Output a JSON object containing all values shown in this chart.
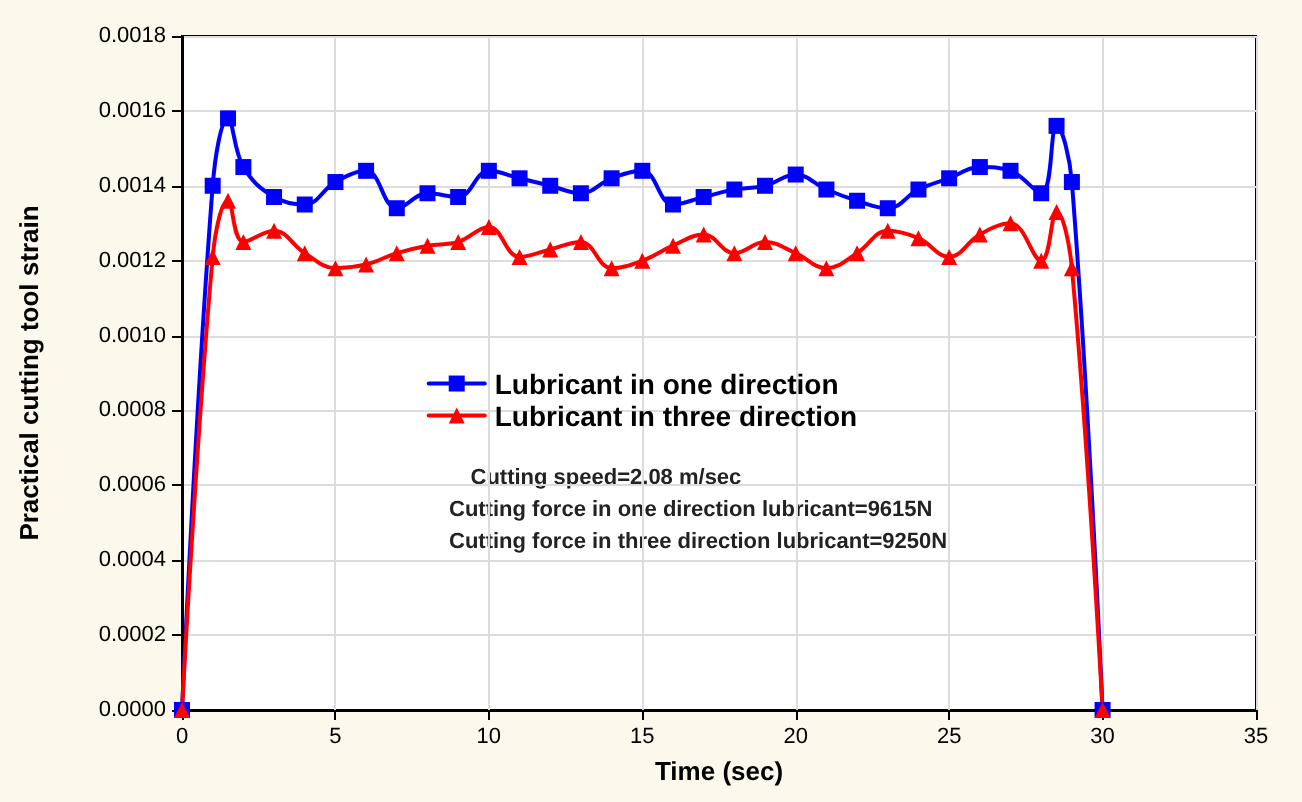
{
  "chart_data": {
    "type": "line",
    "xlabel": "Time (sec)",
    "ylabel": "Practical cutting tool strain",
    "x": [
      0,
      1,
      1.5,
      2,
      3,
      4,
      5,
      6,
      7,
      8,
      9,
      10,
      11,
      12,
      13,
      14,
      15,
      16,
      17,
      18,
      19,
      20,
      21,
      22,
      23,
      24,
      25,
      26,
      27,
      28,
      28.5,
      29,
      30
    ],
    "series": [
      {
        "name": "Lubricant in one direction",
        "color": "#0000ff",
        "marker": "square",
        "values": [
          0,
          0.0014,
          0.00158,
          0.00145,
          0.00137,
          0.00135,
          0.00141,
          0.00144,
          0.00134,
          0.00138,
          0.00137,
          0.00144,
          0.00142,
          0.0014,
          0.00138,
          0.00142,
          0.00144,
          0.00135,
          0.00137,
          0.00139,
          0.0014,
          0.00143,
          0.00139,
          0.00136,
          0.00134,
          0.00139,
          0.00142,
          0.00145,
          0.00144,
          0.00138,
          0.00156,
          0.00141,
          0
        ]
      },
      {
        "name": "Lubricant in three direction",
        "color": "#ff0000",
        "marker": "triangle",
        "values": [
          0,
          0.00121,
          0.00136,
          0.00125,
          0.00128,
          0.00122,
          0.00118,
          0.00119,
          0.00122,
          0.00124,
          0.00125,
          0.00129,
          0.00121,
          0.00123,
          0.00125,
          0.00118,
          0.0012,
          0.00124,
          0.00127,
          0.00122,
          0.00125,
          0.00122,
          0.00118,
          0.00122,
          0.00128,
          0.00126,
          0.00121,
          0.00127,
          0.0013,
          0.0012,
          0.00133,
          0.00118,
          0
        ]
      }
    ],
    "xlim": [
      0,
      35
    ],
    "xticks": [
      0,
      5,
      10,
      15,
      20,
      25,
      30,
      35
    ],
    "ylim": [
      0,
      0.0018
    ],
    "yticks": [
      {
        "value": 0,
        "label": "0.0000"
      },
      {
        "value": 0.0002,
        "label": "0.0002"
      },
      {
        "value": 0.0004,
        "label": "0.0004"
      },
      {
        "value": 0.0006,
        "label": "0.0006"
      },
      {
        "value": 0.0008,
        "label": "0.0008"
      },
      {
        "value": 0.001,
        "label": "0.0010"
      },
      {
        "value": 0.0012,
        "label": "0.0012"
      },
      {
        "value": 0.0014,
        "label": "0.0014"
      },
      {
        "value": 0.0016,
        "label": "0.0016"
      },
      {
        "value": 0.0018,
        "label": "0.0018"
      }
    ],
    "grid": true,
    "legend": "center left",
    "line_style": "solid",
    "annotations": [
      "Cutting speed=2.08 m/sec",
      "Cutting force in one direction lubricant=9615N",
      "Cutting force in three direction lubricant=9250N"
    ]
  }
}
